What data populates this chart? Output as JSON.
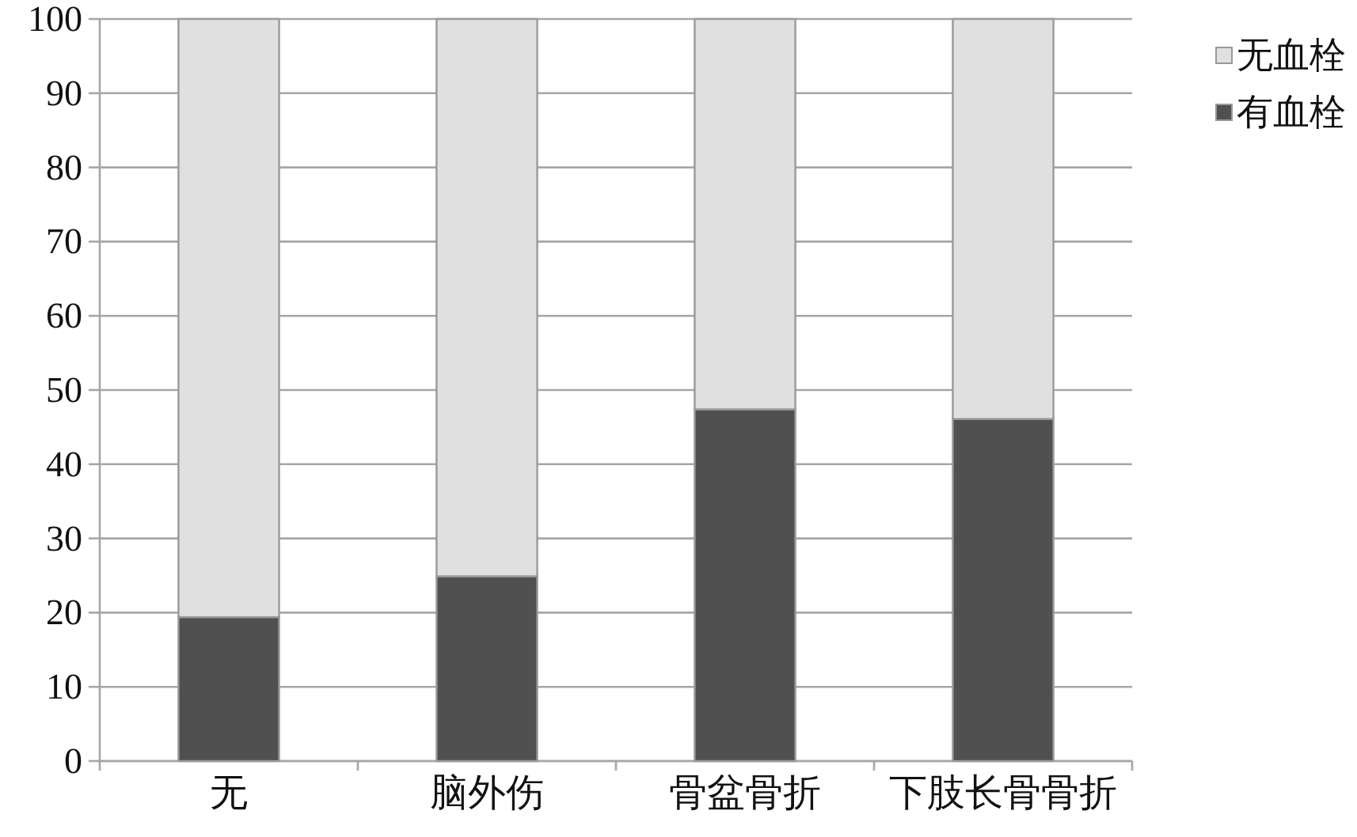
{
  "chart_data": {
    "type": "bar",
    "stacked": true,
    "categories": [
      "无",
      "脑外伤",
      "骨盆骨折",
      "下肢长骨骨折"
    ],
    "series": [
      {
        "name": "有血栓",
        "color": "#505050",
        "values": [
          19.4,
          24.9,
          47.4,
          46.1
        ]
      },
      {
        "name": "无血栓",
        "color": "#e0e0e0",
        "values": [
          80.6,
          75.1,
          52.6,
          53.9
        ]
      }
    ],
    "ylim": [
      0,
      100
    ],
    "yticks": [
      0,
      10,
      20,
      30,
      40,
      50,
      60,
      70,
      80,
      90,
      100
    ],
    "grid": "y",
    "legend": "right"
  }
}
